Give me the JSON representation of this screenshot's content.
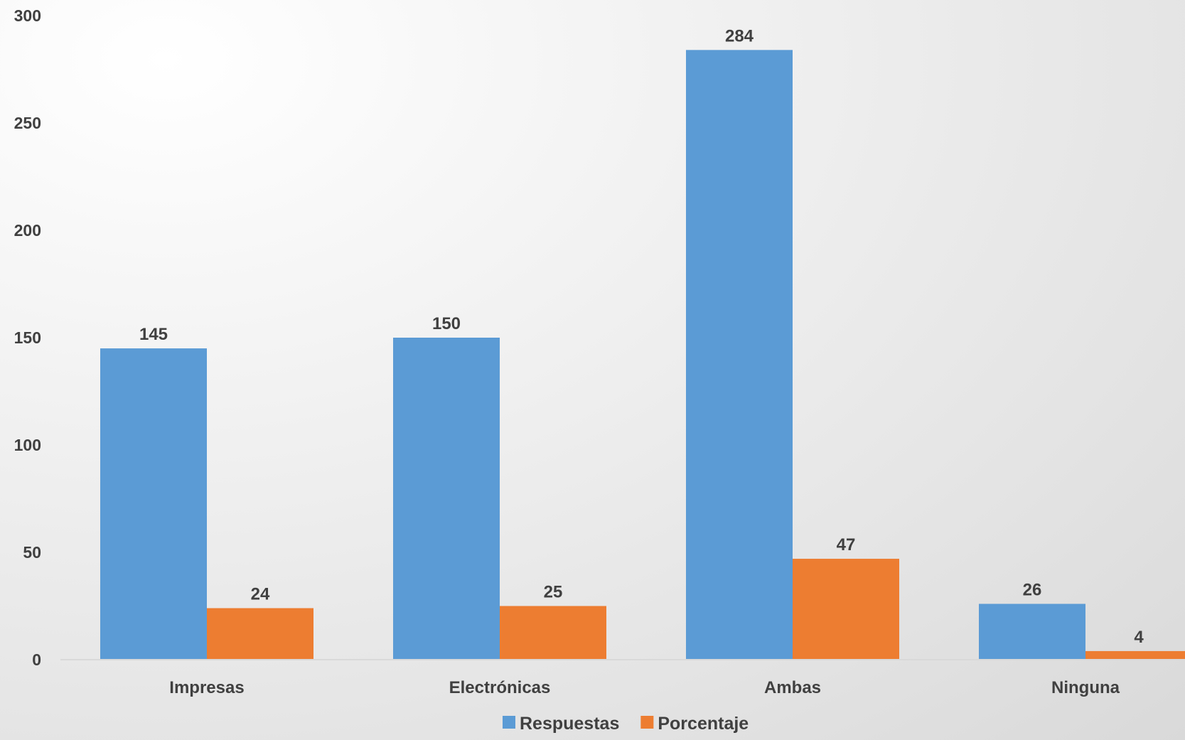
{
  "chart_data": {
    "type": "bar",
    "title": "",
    "xlabel": "",
    "ylabel": "",
    "categories": [
      "Impresas",
      "Electrónicas",
      "Ambas",
      "Ninguna"
    ],
    "series": [
      {
        "name": "Respuestas",
        "values": [
          145,
          150,
          284,
          26
        ],
        "color": "#5B9BD5"
      },
      {
        "name": "Porcentaje",
        "values": [
          24,
          25,
          47,
          4
        ],
        "color": "#ED7D31"
      }
    ],
    "ylim": [
      0,
      300
    ],
    "yticks": [
      0,
      50,
      100,
      150,
      200,
      250,
      300
    ],
    "grid": false,
    "legend_position": "bottom",
    "data_labels": true,
    "axis_line_color": "#D9D9D9",
    "text_color": "#404040"
  }
}
